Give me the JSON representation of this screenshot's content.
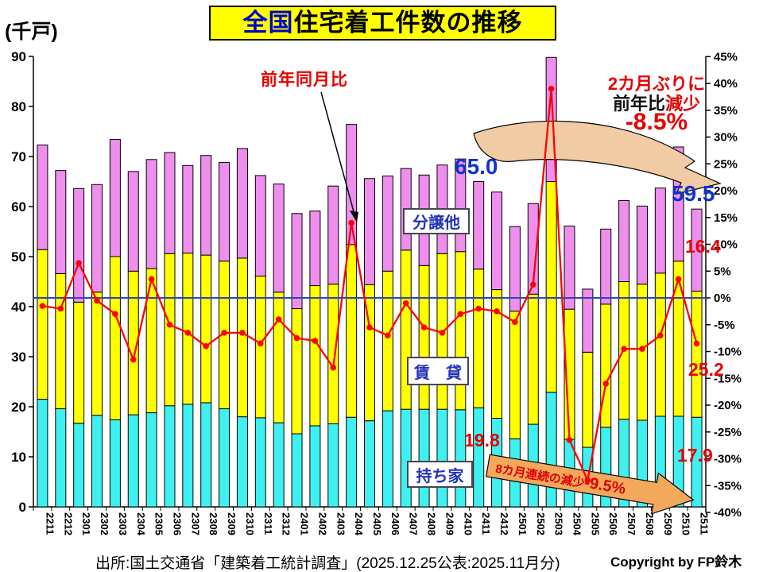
{
  "title": {
    "highlight": "全国",
    "rest": "住宅着工件数の推移"
  },
  "unit_label": "(千戸)",
  "line_label": "前年同月比",
  "segment_boxes": {
    "pink": "分譲他",
    "yellow": "賃　貸",
    "cyan": "持ち家"
  },
  "callouts": {
    "note_line1": "2カ月ぶりに",
    "note_line2_black": "前年比",
    "note_line2_red": "減少",
    "note_line3": "-8.5%",
    "total_2411": "65.0",
    "total_2511": "59.5",
    "pink_2511": "16.4",
    "yellow_2511": "25.2",
    "cyan_2411": "19.8",
    "cyan_2511": "17.9",
    "orange_arrow_small": "8カ月連続の減少",
    "orange_arrow_big": "-9.5%"
  },
  "source": "出所:国土交通省「建築着工統計調査」(2025.12.25公表:2025.11月分)",
  "copyright": "Copyright by FP鈴木",
  "colors": {
    "cyan_bar": "#3FF0F0",
    "yellow_bar": "#FFFF00",
    "pink_bar": "#EE8FEE",
    "red_line": "#FF0000",
    "zero_line_blue": "#3344BB",
    "beige_arrow": "#F1CBA3",
    "orange_arrow": "#F4A85C",
    "title_bg": "#FFFF00"
  },
  "chart_data": {
    "type": "stacked-bar + line",
    "title": "全国住宅着工件数の推移",
    "ylabel_left": "千戸",
    "ylabel_right": "前年同月比 %",
    "left_axis": {
      "min": 0,
      "max": 90,
      "step": 10
    },
    "right_axis": {
      "min": -40,
      "max": 45,
      "step": 5,
      "suffix": "%"
    },
    "zero_reference_line_pct": 0,
    "legend_position": "in-plot text boxes",
    "grid": false,
    "categories": [
      "2211",
      "2212",
      "2301",
      "2302",
      "2303",
      "2304",
      "2305",
      "2306",
      "2307",
      "2308",
      "2309",
      "2310",
      "2311",
      "2312",
      "2401",
      "2402",
      "2403",
      "2404",
      "2405",
      "2406",
      "2407",
      "2408",
      "2409",
      "2410",
      "2411",
      "2412",
      "2501",
      "2502",
      "2503",
      "2504",
      "2505",
      "2506",
      "2507",
      "2508",
      "2509",
      "2510",
      "2511"
    ],
    "series": [
      {
        "name": "持ち家",
        "type": "bar",
        "color_key": "cyan_bar",
        "values": [
          21.5,
          19.6,
          16.7,
          18.3,
          17.4,
          18.4,
          18.8,
          20.2,
          20.5,
          20.8,
          19.6,
          18.0,
          17.8,
          16.8,
          14.6,
          16.2,
          16.6,
          17.9,
          17.2,
          19.2,
          19.5,
          19.5,
          19.5,
          19.4,
          19.8,
          17.7,
          13.6,
          16.5,
          22.9,
          13.5,
          11.9,
          15.9,
          17.5,
          17.3,
          18.1,
          18.1,
          17.9
        ]
      },
      {
        "name": "賃貸",
        "type": "bar",
        "color_key": "yellow_bar",
        "values": [
          29.9,
          27.0,
          24.2,
          24.6,
          32.6,
          28.7,
          28.8,
          30.4,
          30.2,
          29.5,
          29.5,
          31.7,
          28.3,
          26.1,
          25.0,
          28.0,
          27.9,
          34.5,
          27.2,
          27.9,
          31.8,
          28.7,
          31.1,
          31.6,
          27.7,
          25.7,
          25.5,
          26.0,
          42.1,
          26.0,
          19.0,
          24.6,
          27.5,
          27.2,
          28.6,
          31.0,
          25.2
        ]
      },
      {
        "name": "分譲他",
        "type": "bar",
        "color_key": "pink_bar",
        "values": [
          20.9,
          20.6,
          22.7,
          21.5,
          23.4,
          19.9,
          21.8,
          20.2,
          17.5,
          19.9,
          19.7,
          21.9,
          20.1,
          21.6,
          19.0,
          14.9,
          19.6,
          24.0,
          21.2,
          19.0,
          16.3,
          18.1,
          17.7,
          18.5,
          17.5,
          19.5,
          16.9,
          18.1,
          24.8,
          16.6,
          12.6,
          15.0,
          16.2,
          15.6,
          17.0,
          22.8,
          16.4
        ]
      },
      {
        "name": "前年同月比(%)",
        "type": "line",
        "axis": "right",
        "color_key": "red_line",
        "values": [
          -1.5,
          -2,
          6.5,
          -0.5,
          -3,
          -11.5,
          3.5,
          -5,
          -6.5,
          -9,
          -6.5,
          -6.5,
          -8.5,
          -4,
          -7.5,
          -8,
          -13,
          14,
          -5.5,
          -7,
          -1,
          -5.5,
          -6.5,
          -3,
          -2,
          -2.5,
          -4.5,
          2.5,
          39,
          -26.5,
          -34,
          -16,
          -9.5,
          -9.5,
          -7,
          3.5,
          -8.5
        ]
      }
    ]
  }
}
